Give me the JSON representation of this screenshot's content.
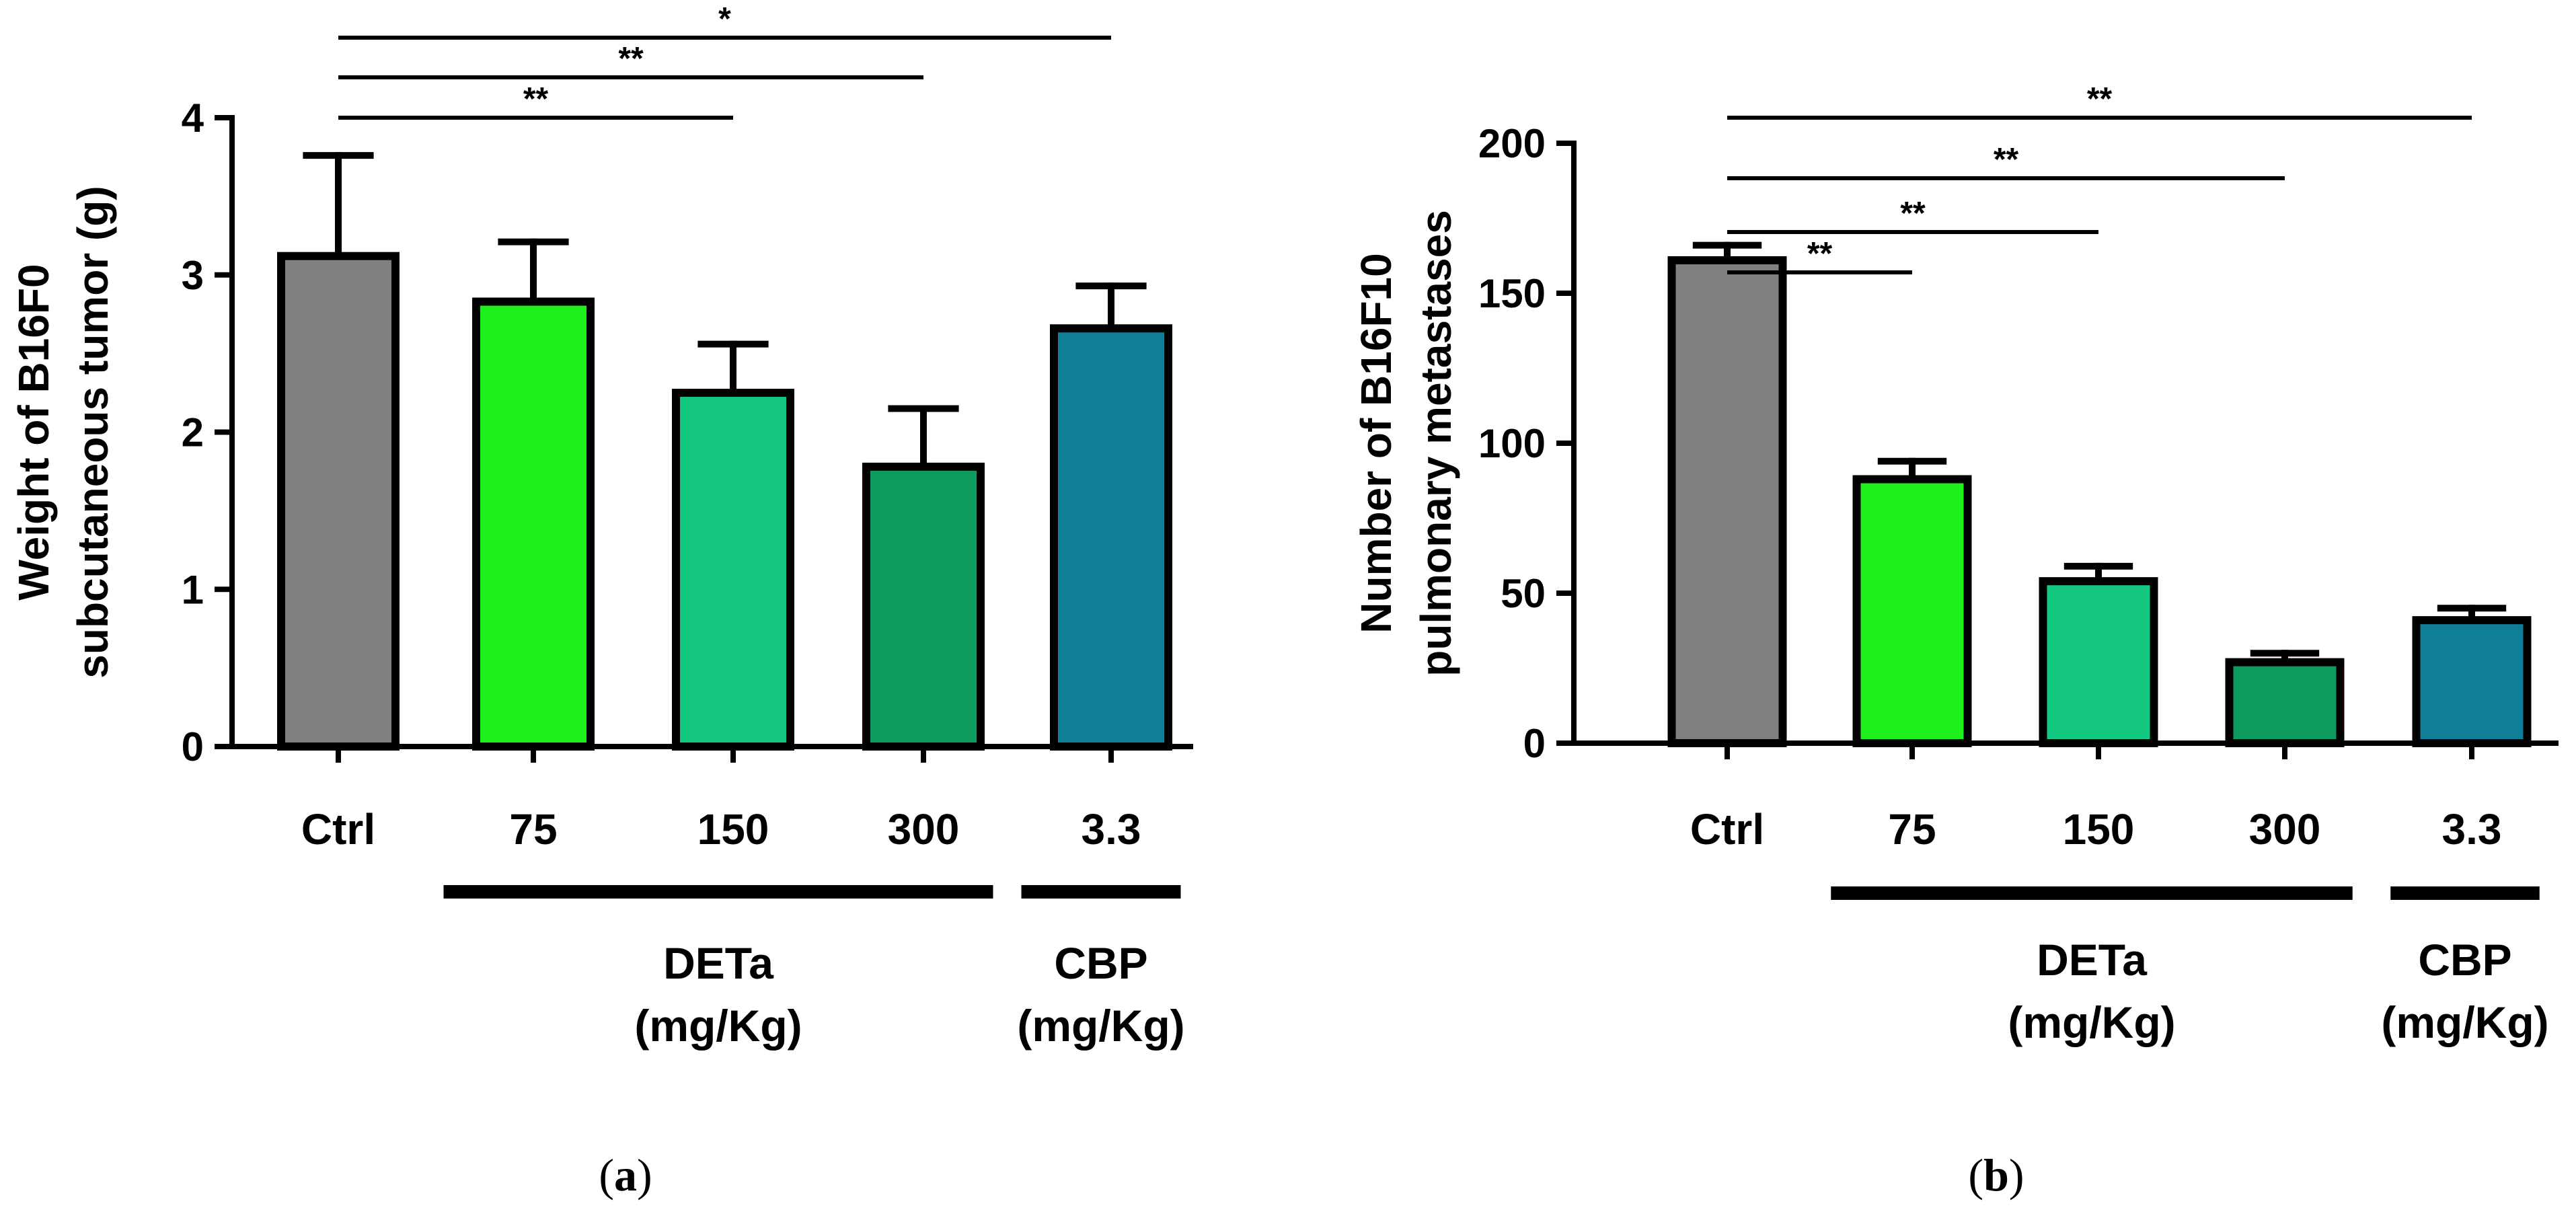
{
  "chart_data": [
    {
      "panel_label": "a",
      "type": "bar",
      "ylabel": [
        "Weight of B16F0",
        "subcutaneous tumor (g)"
      ],
      "ylim": [
        0,
        4
      ],
      "yticks": [
        0,
        1,
        2,
        3,
        4
      ],
      "categories": [
        "Ctrl",
        "75",
        "150",
        "300",
        "3.3"
      ],
      "values": [
        3.12,
        2.83,
        2.25,
        1.78,
        2.66
      ],
      "errors": [
        0.64,
        0.38,
        0.31,
        0.37,
        0.27
      ],
      "colors": [
        "#808080",
        "#1ef01e",
        "#14c882",
        "#0e9b5e",
        "#0e7f96"
      ],
      "significance": [
        {
          "from": 0,
          "to": 4,
          "label": "*"
        },
        {
          "from": 0,
          "to": 3,
          "label": "**"
        },
        {
          "from": 0,
          "to": 2,
          "label": "**"
        }
      ],
      "groups": [
        {
          "from": 1,
          "to": 3,
          "lines": [
            "DETa",
            "(mg/Kg)"
          ]
        },
        {
          "from": 4,
          "to": 4,
          "lines": [
            "CBP",
            "(mg/Kg)"
          ]
        }
      ]
    },
    {
      "panel_label": "b",
      "type": "bar",
      "ylabel": [
        "Number of B16F10",
        "pulmonary metastases"
      ],
      "ylim": [
        0,
        200
      ],
      "yticks": [
        0,
        50,
        100,
        150,
        200
      ],
      "categories": [
        "Ctrl",
        "75",
        "150",
        "300",
        "3.3"
      ],
      "values": [
        161,
        88,
        54,
        27,
        41
      ],
      "errors": [
        5,
        6,
        5,
        3,
        4
      ],
      "colors": [
        "#808080",
        "#1ef01e",
        "#14c882",
        "#0e9b5e",
        "#0e7f96"
      ],
      "significance": [
        {
          "from": 0,
          "to": 4,
          "label": "**"
        },
        {
          "from": 0,
          "to": 3,
          "label": "**"
        },
        {
          "from": 0,
          "to": 2,
          "label": "**"
        },
        {
          "from": 0,
          "to": 1,
          "label": "**"
        }
      ],
      "groups": [
        {
          "from": 1,
          "to": 3,
          "lines": [
            "DETa",
            "(mg/Kg)"
          ]
        },
        {
          "from": 4,
          "to": 4,
          "lines": [
            "CBP",
            "(mg/Kg)"
          ]
        }
      ]
    }
  ]
}
